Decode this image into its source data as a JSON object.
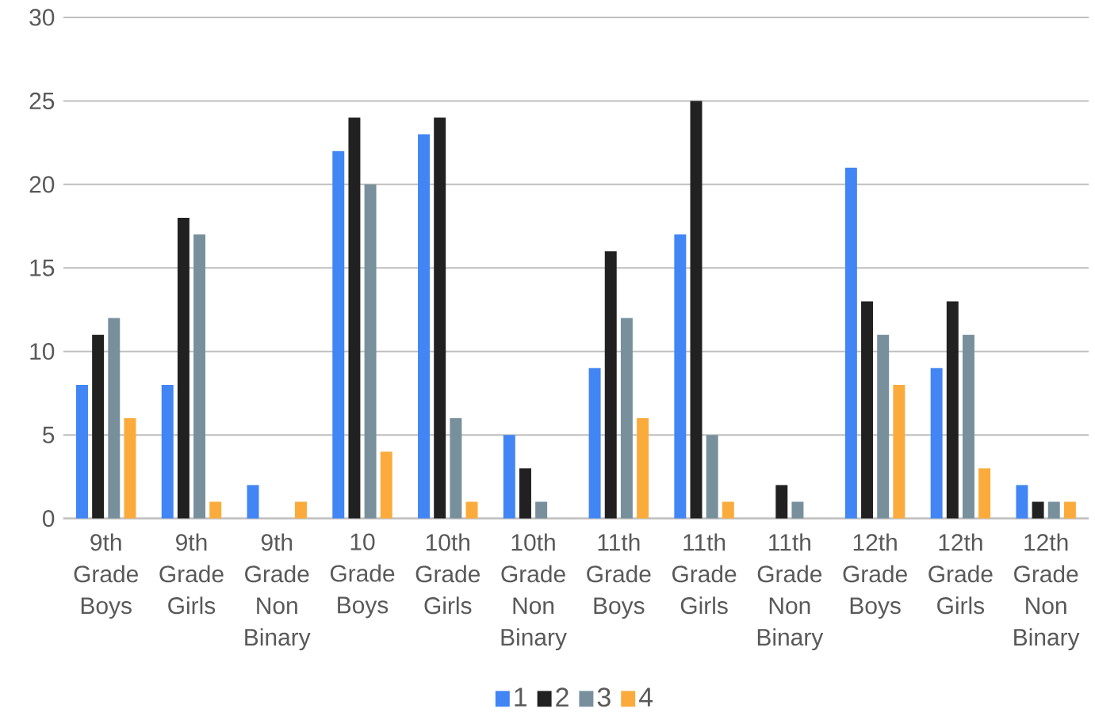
{
  "chart_data": {
    "type": "bar",
    "categories": [
      "9th Grade Boys",
      "9th Grade Girls",
      "9th Grade Non Binary",
      "10 Grade Boys",
      "10th Grade Girls",
      "10th Grade Non Binary",
      "11th Grade Boys",
      "11th Grade Girls",
      "11th Grade Non Binary",
      "12th Grade Boys",
      "12th Grade Girls",
      "12th Grade Non Binary"
    ],
    "series": [
      {
        "name": "1",
        "color": "#4285f4",
        "values": [
          8,
          8,
          2,
          22,
          23,
          5,
          9,
          17,
          0,
          21,
          9,
          2
        ]
      },
      {
        "name": "2",
        "color": "#212121",
        "values": [
          11,
          18,
          0,
          24,
          24,
          3,
          16,
          25,
          2,
          13,
          13,
          1
        ]
      },
      {
        "name": "3",
        "color": "#78909c",
        "values": [
          12,
          17,
          0,
          20,
          6,
          1,
          12,
          5,
          1,
          11,
          11,
          1
        ]
      },
      {
        "name": "4",
        "color": "#fbab3c",
        "values": [
          6,
          1,
          1,
          4,
          1,
          0,
          6,
          1,
          0,
          8,
          3,
          1
        ]
      }
    ],
    "ylim": [
      0,
      30
    ],
    "yticks": [
      0,
      5,
      10,
      15,
      20,
      25,
      30
    ],
    "grid": "y",
    "legend": "bottom"
  }
}
